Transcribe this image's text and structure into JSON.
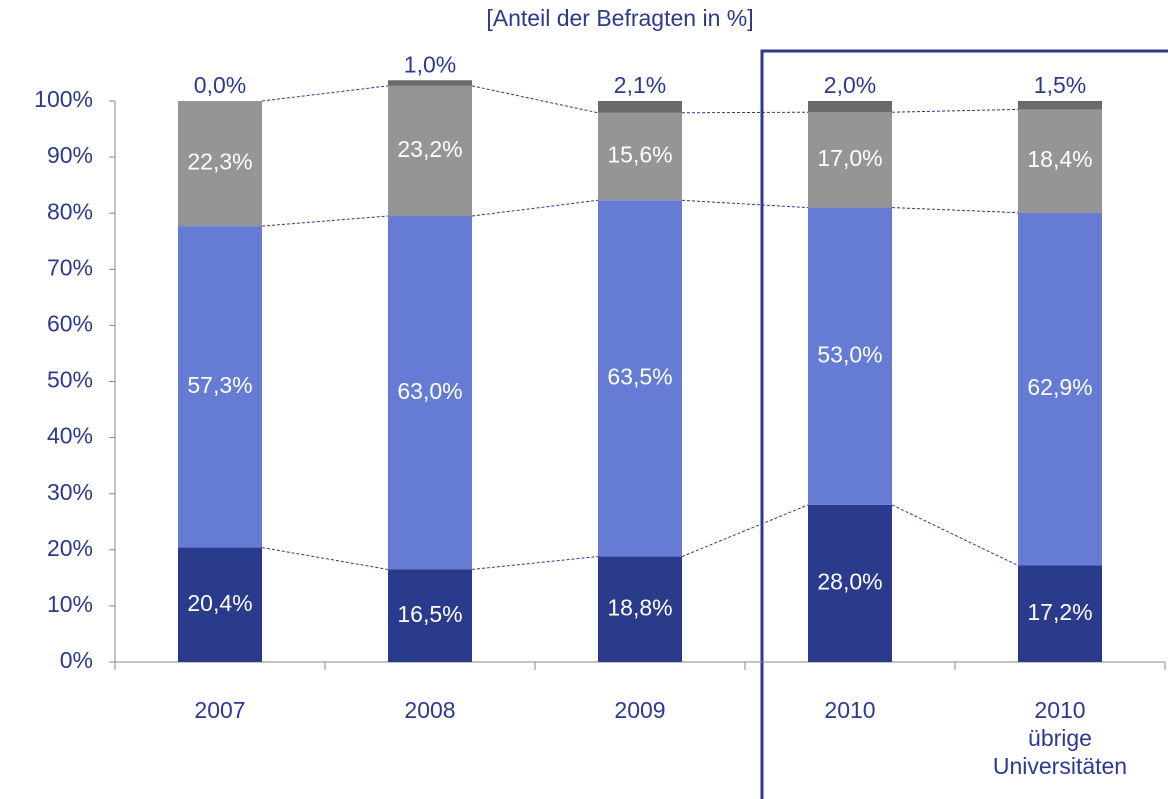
{
  "chart_data": {
    "type": "stacked-bar",
    "title": "[Anteil der Befragten in %]",
    "categories": [
      "2007",
      "2008",
      "2009",
      "2010",
      "2010\nübrige\nUniversitäten"
    ],
    "series": [
      {
        "color": "#2a3b8c",
        "values": [
          20.4,
          16.5,
          18.8,
          28.0,
          17.2
        ],
        "value_labels": [
          "20,4%",
          "16,5%",
          "18,8%",
          "28,0%",
          "17,2%"
        ]
      },
      {
        "color": "#667bd3",
        "values": [
          57.3,
          63.0,
          63.5,
          53.0,
          62.9
        ],
        "value_labels": [
          "57,3%",
          "63,0%",
          "63,5%",
          "53,0%",
          "62,9%"
        ]
      },
      {
        "color": "#959595",
        "values": [
          22.3,
          23.2,
          15.6,
          17.0,
          18.4
        ],
        "value_labels": [
          "22,3%",
          "23,2%",
          "15,6%",
          "17,0%",
          "18,4%"
        ]
      },
      {
        "color": "#6a6a6a",
        "values": [
          0.0,
          1.0,
          2.1,
          2.0,
          1.5
        ],
        "value_labels": [
          "0,0%",
          "1,0%",
          "2,1%",
          "2,0%",
          "1,5%"
        ]
      }
    ],
    "ylim": [
      0,
      100
    ],
    "yticks": [
      {
        "value": 0,
        "label": "0%"
      },
      {
        "value": 10,
        "label": "10%"
      },
      {
        "value": 20,
        "label": "20%"
      },
      {
        "value": 30,
        "label": "30%"
      },
      {
        "value": 40,
        "label": "40%"
      },
      {
        "value": 50,
        "label": "50%"
      },
      {
        "value": 60,
        "label": "60%"
      },
      {
        "value": 70,
        "label": "70%"
      },
      {
        "value": 80,
        "label": "80%"
      },
      {
        "value": 90,
        "label": "90%"
      },
      {
        "value": 100,
        "label": "100%"
      }
    ]
  }
}
